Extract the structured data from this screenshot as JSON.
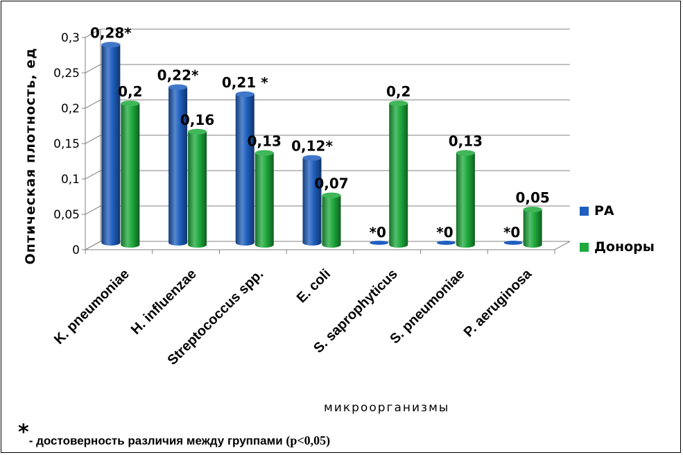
{
  "chart_data": {
    "type": "bar",
    "categories": [
      "K. pneumoniae",
      "H. influenzae",
      "Streptococcus spp.",
      "E. coli",
      "S. saprophyticus",
      "S. pneumoniae",
      "P. aeruginosa"
    ],
    "series": [
      {
        "name": "РА",
        "color": "#1F5FBF",
        "values": [
          0.28,
          0.22,
          0.21,
          0.12,
          0,
          0,
          0
        ],
        "labels": [
          "0,28*",
          "0,22*",
          "0,21 *",
          "0,12*",
          "*0",
          "*0",
          "*0"
        ]
      },
      {
        "name": "Доноры",
        "color": "#1EAA3C",
        "values": [
          0.2,
          0.16,
          0.13,
          0.07,
          0.2,
          0.13,
          0.05
        ],
        "labels": [
          "0,2",
          "0,16",
          "0,13",
          "0,07",
          "0,2",
          "0,13",
          "0,05"
        ]
      }
    ],
    "yticks": [
      "0",
      "0,05",
      "0,1",
      "0,15",
      "0,2",
      "0,25",
      "0,3"
    ],
    "ylim": [
      0,
      0.3
    ],
    "xlabel": "микроорганизмы",
    "ylabel": "Оптическая плотность, ед",
    "grid": true,
    "legend": "right"
  },
  "footnote": {
    "star": "*",
    "text": "- достоверность различия между группами ",
    "p": "(p<0,05)"
  }
}
